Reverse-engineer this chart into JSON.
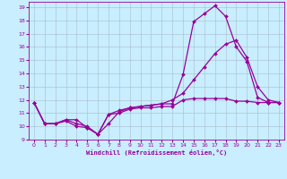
{
  "title": "",
  "xlabel": "Windchill (Refroidissement éolien,°C)",
  "ylabel": "",
  "bg_color": "#c8eeff",
  "grid_color": "#aabbcc",
  "line_color": "#990099",
  "xlim": [
    -0.5,
    23.5
  ],
  "ylim": [
    9,
    19.4
  ],
  "xticks": [
    0,
    1,
    2,
    3,
    4,
    5,
    6,
    7,
    8,
    9,
    10,
    11,
    12,
    13,
    14,
    15,
    16,
    17,
    18,
    19,
    20,
    21,
    22,
    23
  ],
  "yticks": [
    9,
    10,
    11,
    12,
    13,
    14,
    15,
    16,
    17,
    18,
    19
  ],
  "line1_x": [
    0,
    1,
    2,
    3,
    4,
    5,
    6,
    7,
    8,
    9,
    10,
    11,
    12,
    13,
    14,
    15,
    16,
    17,
    18,
    19,
    20,
    21,
    22,
    23
  ],
  "line1_y": [
    11.8,
    10.2,
    10.2,
    10.5,
    10.5,
    9.9,
    9.4,
    10.2,
    11.1,
    11.4,
    11.5,
    11.6,
    11.7,
    11.7,
    13.9,
    17.9,
    18.5,
    19.1,
    18.3,
    16.0,
    14.9,
    12.2,
    11.8,
    11.8
  ],
  "line2_x": [
    0,
    1,
    2,
    3,
    4,
    5,
    6,
    7,
    8,
    9,
    10,
    11,
    12,
    13,
    14,
    15,
    16,
    17,
    18,
    19,
    20,
    21,
    22,
    23
  ],
  "line2_y": [
    11.8,
    10.2,
    10.2,
    10.4,
    10.0,
    9.9,
    9.4,
    10.9,
    11.0,
    11.3,
    11.4,
    11.4,
    11.5,
    11.5,
    12.0,
    12.1,
    12.1,
    12.1,
    12.1,
    11.9,
    11.9,
    11.8,
    11.8,
    11.8
  ],
  "line3_x": [
    0,
    1,
    2,
    3,
    4,
    5,
    6,
    7,
    8,
    9,
    10,
    11,
    12,
    13,
    14,
    15,
    16,
    17,
    18,
    19,
    20,
    21,
    22,
    23
  ],
  "line3_y": [
    11.8,
    10.2,
    10.2,
    10.5,
    10.2,
    10.0,
    9.4,
    10.9,
    11.2,
    11.4,
    11.5,
    11.6,
    11.7,
    12.0,
    12.5,
    13.5,
    14.5,
    15.5,
    16.2,
    16.5,
    15.2,
    13.0,
    12.0,
    11.8
  ]
}
